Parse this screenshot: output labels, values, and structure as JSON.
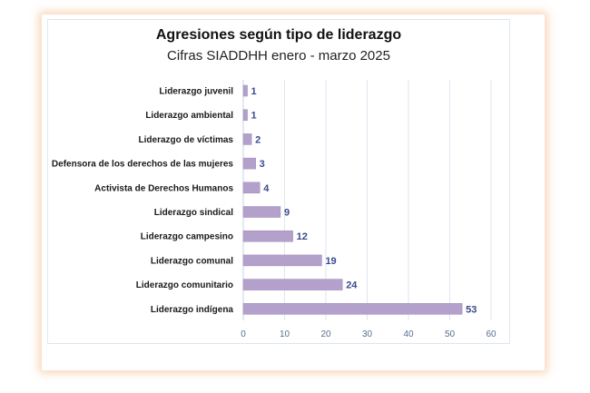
{
  "chart_data": {
    "type": "bar",
    "orientation": "horizontal",
    "title": "Agresiones según tipo de liderazgo",
    "subtitle": "Cifras SIADDHH enero - marzo 2025",
    "categories": [
      "Liderazgo juvenil",
      "Liderazgo ambiental",
      "Liderazgo de víctimas",
      "Defensora de los derechos de las mujeres",
      "Activista de Derechos Humanos",
      "Liderazgo sindical",
      "Liderazgo campesino",
      "Liderazgo comunal",
      "Liderazgo comunitario",
      "Liderazgo indígena"
    ],
    "values": [
      1,
      1,
      2,
      3,
      4,
      9,
      12,
      19,
      24,
      53
    ],
    "xlim": [
      0,
      60
    ],
    "xticks": [
      0,
      10,
      20,
      30,
      40,
      50,
      60
    ],
    "grid": true,
    "legend": "none",
    "colors": {
      "bar": "#b3a1cc",
      "bar_edge": "#9c89ba",
      "value_label": "#3b4a8c",
      "grid": "#dce6f0",
      "frame_shadow": "#f4be8c"
    }
  }
}
